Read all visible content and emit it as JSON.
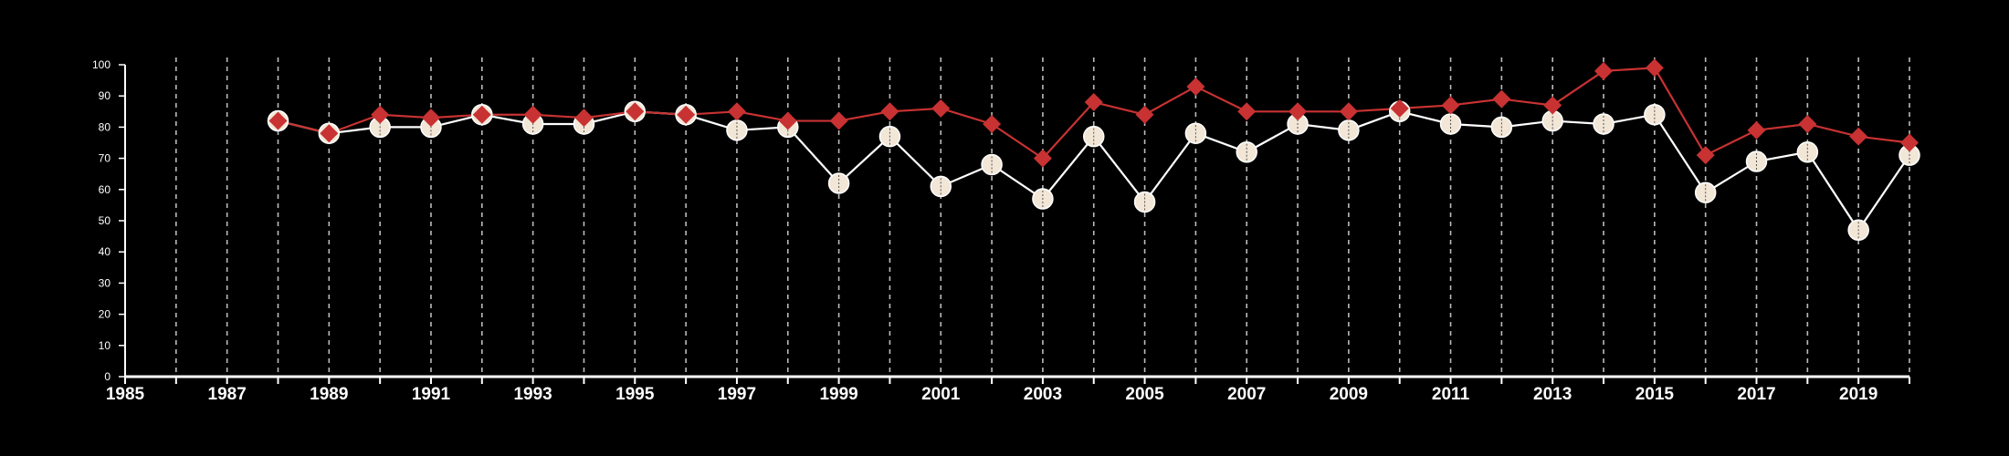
{
  "colors": {
    "background": "#000000",
    "axis": "#ffffff",
    "gridline": "#bbbbbb",
    "series_a_line": "#ffffff",
    "series_a_marker": "#f2e6d6",
    "series_a_marker_stroke": "#ffffff",
    "series_b": "#c83232"
  },
  "chart_data": {
    "type": "line",
    "title": "",
    "xlabel": "",
    "ylabel": "",
    "xlim": [
      1985,
      2020
    ],
    "ylim": [
      0,
      100
    ],
    "x_ticks": [
      "1985",
      "1987",
      "1989",
      "1991",
      "1993",
      "1995",
      "1997",
      "1999",
      "2001",
      "2003",
      "2005",
      "2007",
      "2009",
      "2011",
      "2013",
      "2015",
      "2017",
      "2019"
    ],
    "y_ticks": [
      "0",
      "10",
      "20",
      "30",
      "40",
      "50",
      "60",
      "70",
      "80",
      "90",
      "100"
    ],
    "grid": "vertical dashed at every year",
    "legend": "none",
    "x": [
      1988,
      1989,
      1990,
      1991,
      1992,
      1993,
      1994,
      1995,
      1996,
      1997,
      1998,
      1999,
      2000,
      2001,
      2002,
      2003,
      2004,
      2005,
      2006,
      2007,
      2008,
      2009,
      2010,
      2011,
      2012,
      2013,
      2014,
      2015,
      2016,
      2017,
      2018,
      2019,
      2020
    ],
    "series": [
      {
        "marker": "circle",
        "values": [
          82,
          78,
          80,
          80,
          84,
          81,
          81,
          85,
          84,
          79,
          80,
          62,
          77,
          61,
          68,
          57,
          77,
          56,
          78,
          72,
          81,
          79,
          85,
          81,
          80,
          82,
          81,
          84,
          59,
          69,
          72,
          47,
          71
        ]
      },
      {
        "marker": "diamond",
        "values": [
          82,
          78,
          84,
          83,
          84,
          84,
          83,
          85,
          84,
          85,
          82,
          82,
          85,
          86,
          81,
          70,
          88,
          84,
          93,
          85,
          85,
          85,
          86,
          87,
          89,
          87,
          98,
          99,
          71,
          79,
          81,
          77,
          75
        ]
      }
    ]
  }
}
